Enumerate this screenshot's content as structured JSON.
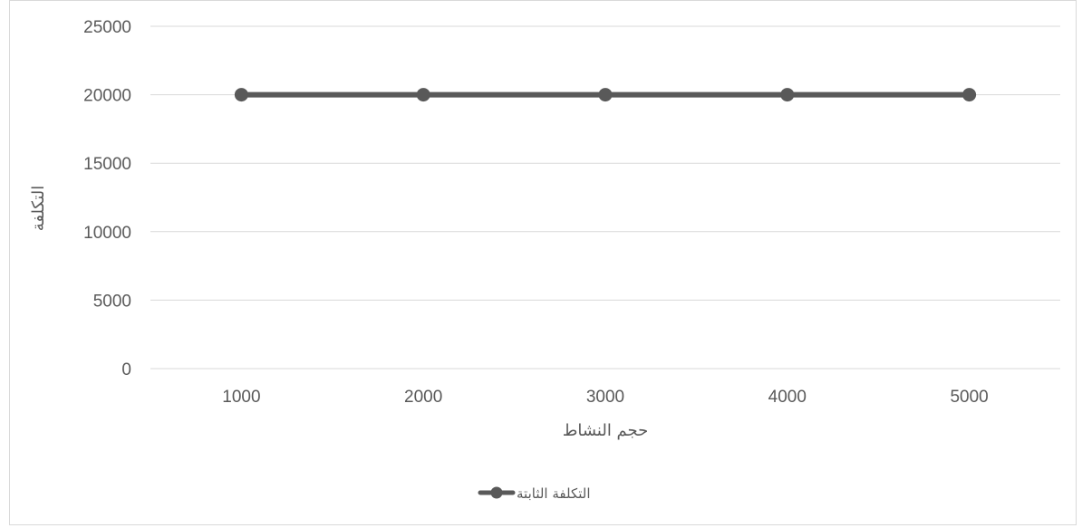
{
  "chart_data": {
    "type": "line",
    "categories": [
      "1000",
      "2000",
      "3000",
      "4000",
      "5000"
    ],
    "series": [
      {
        "name": "التكلفة الثابتة",
        "values": [
          20000,
          20000,
          20000,
          20000,
          20000
        ],
        "color": "#595959"
      }
    ],
    "title": "",
    "xlabel": "حجم النشاط",
    "ylabel": "التكلفة",
    "ylim": [
      0,
      25000
    ],
    "yticks": [
      0,
      5000,
      10000,
      15000,
      20000,
      25000
    ],
    "grid": true,
    "legend_position": "bottom",
    "gridline_color": "#d9d9d9",
    "axis_line_color": "#d9d9d9"
  }
}
